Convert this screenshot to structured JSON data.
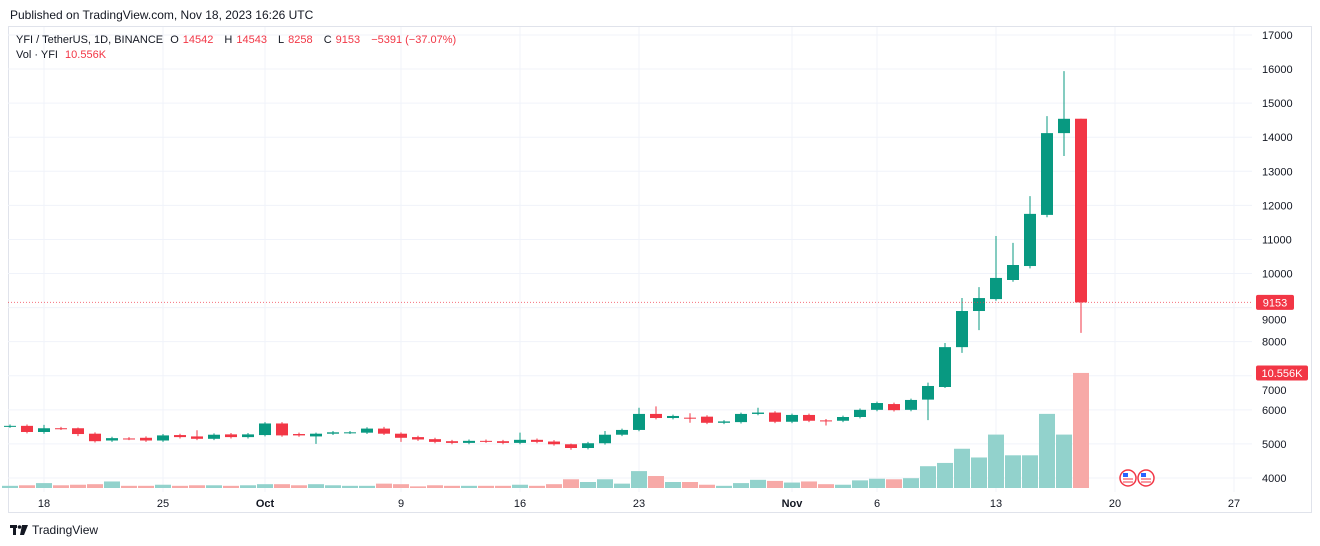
{
  "header": {
    "published": "Published on TradingView.com, Nov 18, 2023 16:26 UTC"
  },
  "legend": {
    "symbol": "YFI / TetherUS, 1D, BINANCE",
    "o_label": "O",
    "o": "14542",
    "h_label": "H",
    "h": "14543",
    "l_label": "L",
    "l": "8258",
    "c_label": "C",
    "c": "9153",
    "change": "−5391 (−37.07%)",
    "vol_label": "Vol · YFI",
    "vol": "10.556K"
  },
  "price_label": "9153",
  "volume_label": "10.556K",
  "logo": {
    "text": "TradingView",
    "icon": "tradingview-logo-icon"
  },
  "event_icons": [
    "us-flag-icon",
    "us-flag-icon"
  ],
  "colors": {
    "up": "#089981",
    "down": "#f23645",
    "vol_up": "#92d2cc",
    "vol_down": "#f7a9a7",
    "grid": "#f0f3fa"
  },
  "chart_data": {
    "type": "candlestick",
    "title": "",
    "symbol": "YFI / TetherUS",
    "interval": "1D",
    "exchange": "BINANCE",
    "y_axis": {
      "position": "right",
      "ticks": [
        4000,
        5000,
        6000,
        7000,
        8000,
        9000,
        10000,
        11000,
        12000,
        13000,
        14000,
        15000,
        16000,
        17000
      ],
      "ylim": [
        3700,
        17300
      ]
    },
    "x_ticks": [
      {
        "label": "18",
        "date": "2023-09-18"
      },
      {
        "label": "25",
        "date": "2023-09-25"
      },
      {
        "label": "Oct",
        "date": "2023-10-01"
      },
      {
        "label": "9",
        "date": "2023-10-09"
      },
      {
        "label": "16",
        "date": "2023-10-16"
      },
      {
        "label": "23",
        "date": "2023-10-23"
      },
      {
        "label": "Nov",
        "date": "2023-11-01"
      },
      {
        "label": "6",
        "date": "2023-11-06"
      },
      {
        "label": "13",
        "date": "2023-11-13"
      },
      {
        "label": "20",
        "date": "2023-11-20"
      },
      {
        "label": "27",
        "date": "2023-11-27"
      }
    ],
    "dates": [
      "2023-09-16",
      "2023-09-17",
      "2023-09-18",
      "2023-09-19",
      "2023-09-20",
      "2023-09-21",
      "2023-09-22",
      "2023-09-23",
      "2023-09-24",
      "2023-09-25",
      "2023-09-26",
      "2023-09-27",
      "2023-09-28",
      "2023-09-29",
      "2023-09-30",
      "2023-10-01",
      "2023-10-02",
      "2023-10-03",
      "2023-10-04",
      "2023-10-05",
      "2023-10-06",
      "2023-10-07",
      "2023-10-08",
      "2023-10-09",
      "2023-10-10",
      "2023-10-11",
      "2023-10-12",
      "2023-10-13",
      "2023-10-14",
      "2023-10-15",
      "2023-10-16",
      "2023-10-17",
      "2023-10-18",
      "2023-10-19",
      "2023-10-20",
      "2023-10-21",
      "2023-10-22",
      "2023-10-23",
      "2023-10-24",
      "2023-10-25",
      "2023-10-26",
      "2023-10-27",
      "2023-10-28",
      "2023-10-29",
      "2023-10-30",
      "2023-10-31",
      "2023-11-01",
      "2023-11-02",
      "2023-11-03",
      "2023-11-04",
      "2023-11-05",
      "2023-11-06",
      "2023-11-07",
      "2023-11-08",
      "2023-11-09",
      "2023-11-10",
      "2023-11-11",
      "2023-11-12",
      "2023-11-13",
      "2023-11-14",
      "2023-11-15",
      "2023-11-16",
      "2023-11-17",
      "2023-11-18"
    ],
    "open": [
      5510,
      5530,
      5350,
      5460,
      5460,
      5300,
      5100,
      5160,
      5180,
      5100,
      5260,
      5220,
      5150,
      5280,
      5200,
      5260,
      5600,
      5290,
      5220,
      5300,
      5330,
      5330,
      5450,
      5300,
      5200,
      5140,
      5080,
      5030,
      5090,
      5080,
      5030,
      5120,
      5070,
      4990,
      4880,
      5020,
      5270,
      5410,
      5880,
      5760,
      5770,
      5800,
      5620,
      5640,
      5880,
      5920,
      5650,
      5850,
      5690,
      5680,
      5790,
      6000,
      6170,
      6000,
      6300,
      6670,
      7840,
      8900,
      9250,
      9810,
      10220,
      11720,
      14120,
      14542
    ],
    "high": [
      5570,
      5570,
      5560,
      5500,
      5480,
      5340,
      5210,
      5200,
      5220,
      5290,
      5300,
      5400,
      5310,
      5320,
      5320,
      5640,
      5640,
      5330,
      5330,
      5380,
      5380,
      5490,
      5500,
      5340,
      5240,
      5180,
      5120,
      5130,
      5130,
      5120,
      5330,
      5160,
      5110,
      5010,
      5060,
      5380,
      5450,
      6060,
      6100,
      5860,
      5900,
      5840,
      5700,
      5920,
      6060,
      5960,
      5890,
      5890,
      5730,
      5830,
      6040,
      6240,
      6210,
      6330,
      6800,
      7960,
      9280,
      9600,
      11100,
      10900,
      12270,
      14620,
      15940,
      14543
    ],
    "low": [
      5470,
      5310,
      5300,
      5410,
      5230,
      5040,
      5060,
      5110,
      5060,
      5060,
      5160,
      5110,
      5110,
      5160,
      5160,
      5220,
      5210,
      5210,
      5000,
      5260,
      5290,
      5290,
      5260,
      5060,
      5090,
      5020,
      4990,
      4990,
      5030,
      4990,
      4990,
      5020,
      4950,
      4830,
      4840,
      4980,
      5230,
      5370,
      5720,
      5720,
      5620,
      5580,
      5580,
      5600,
      5840,
      5610,
      5610,
      5640,
      5540,
      5640,
      5750,
      5960,
      5950,
      5960,
      5700,
      6640,
      7670,
      8340,
      9200,
      9760,
      10150,
      11650,
      13450,
      8258
    ],
    "close": [
      5530,
      5350,
      5460,
      5450,
      5290,
      5080,
      5170,
      5150,
      5100,
      5250,
      5200,
      5150,
      5270,
      5200,
      5280,
      5600,
      5250,
      5250,
      5300,
      5340,
      5340,
      5450,
      5300,
      5180,
      5130,
      5060,
      5030,
      5090,
      5070,
      5030,
      5120,
      5060,
      4990,
      4880,
      5020,
      5270,
      5410,
      5880,
      5760,
      5820,
      5760,
      5620,
      5660,
      5880,
      5920,
      5650,
      5850,
      5680,
      5680,
      5790,
      6000,
      6200,
      5990,
      6290,
      6700,
      7840,
      8900,
      9280,
      9870,
      10250,
      11750,
      14120,
      14540,
      9153
    ],
    "volume_unit": "K",
    "volume": [
      0.2,
      0.25,
      0.45,
      0.25,
      0.3,
      0.35,
      0.6,
      0.2,
      0.2,
      0.3,
      0.2,
      0.25,
      0.25,
      0.2,
      0.25,
      0.35,
      0.35,
      0.25,
      0.35,
      0.25,
      0.2,
      0.2,
      0.4,
      0.35,
      0.15,
      0.25,
      0.2,
      0.2,
      0.2,
      0.2,
      0.3,
      0.2,
      0.35,
      0.8,
      0.55,
      0.8,
      0.4,
      1.55,
      1.1,
      0.55,
      0.55,
      0.3,
      0.2,
      0.45,
      0.75,
      0.65,
      0.5,
      0.6,
      0.35,
      0.3,
      0.7,
      0.85,
      0.8,
      0.9,
      2.0,
      2.3,
      3.6,
      2.8,
      4.9,
      3.0,
      3.0,
      6.8,
      4.9,
      10.556
    ],
    "last_price": 9153,
    "grid": true,
    "legend_position": "top-left"
  }
}
